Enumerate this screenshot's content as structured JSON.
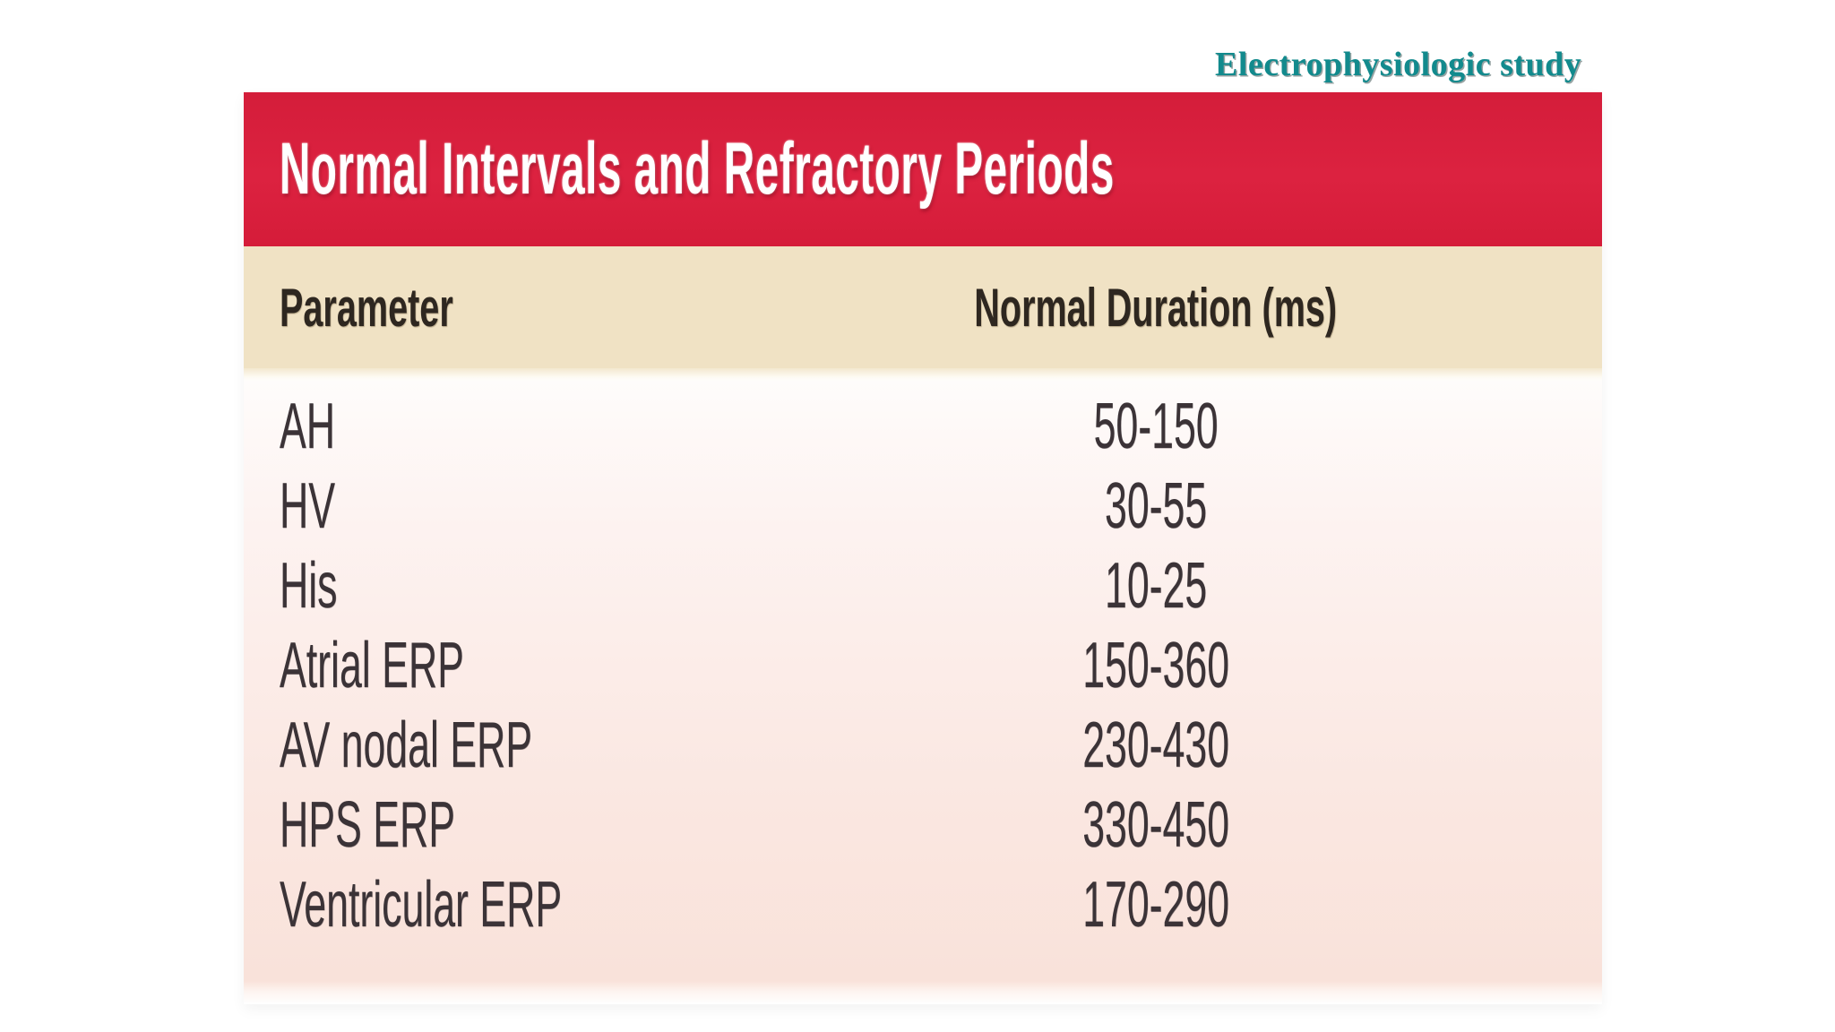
{
  "slide": {
    "caption": "Electrophysiologic study"
  },
  "colors": {
    "banner_red": "#d81e3b",
    "header_tan": "#f0e2c4",
    "body_pink": "#f9e2da",
    "caption_teal": "#128a8d",
    "banner_text": "#ffffff",
    "body_text": "#3b3337"
  },
  "table": {
    "title": "Normal Intervals and Refractory Periods",
    "columns": [
      "Parameter",
      "Normal Duration (ms)"
    ],
    "rows": [
      {
        "parameter": "AH",
        "duration": "50-150"
      },
      {
        "parameter": "HV",
        "duration": "30-55"
      },
      {
        "parameter": "His",
        "duration": "10-25"
      },
      {
        "parameter": "Atrial ERP",
        "duration": "150-360"
      },
      {
        "parameter": "AV nodal ERP",
        "duration": "230-430"
      },
      {
        "parameter": "HPS ERP",
        "duration": "330-450"
      },
      {
        "parameter": "Ventricular ERP",
        "duration": "170-290"
      }
    ]
  }
}
